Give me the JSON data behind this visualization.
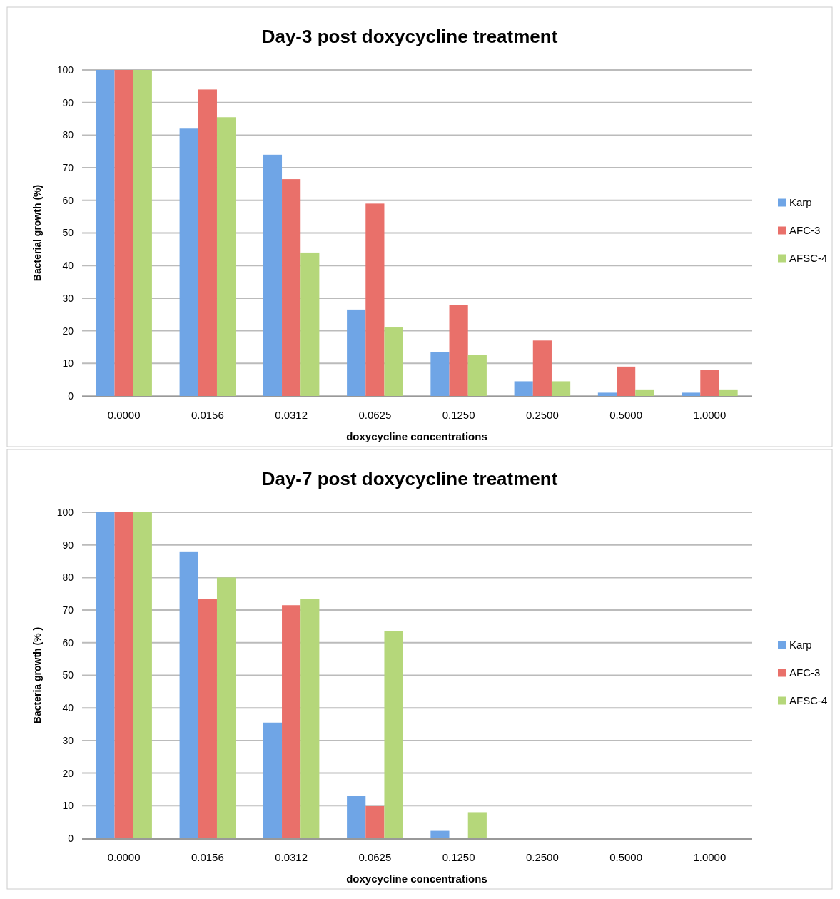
{
  "chart_data": [
    {
      "type": "bar",
      "title": "Day-3 post doxycycline treatment",
      "xlabel": "doxycycline concentrations",
      "ylabel": "Bacterial growth (%)",
      "categories": [
        "0.0000",
        "0.0156",
        "0.0312",
        "0.0625",
        "0.1250",
        "0.2500",
        "0.5000",
        "1.0000"
      ],
      "series": [
        {
          "name": "Karp",
          "color": "#6fa5e6",
          "values": [
            100,
            82,
            74,
            26.5,
            13.5,
            4.5,
            1,
            1
          ]
        },
        {
          "name": "AFC-3",
          "color": "#e9706a",
          "values": [
            100,
            94,
            66.5,
            59,
            28,
            17,
            9,
            8
          ]
        },
        {
          "name": "AFSC-4",
          "color": "#b5d77a",
          "values": [
            100,
            85.5,
            44,
            21,
            12.5,
            4.5,
            2,
            2
          ]
        }
      ],
      "ylim": [
        0,
        100
      ],
      "yticks": [
        0,
        10,
        20,
        30,
        40,
        50,
        60,
        70,
        80,
        90,
        100
      ],
      "grid": "y",
      "legend": "right"
    },
    {
      "type": "bar",
      "title": "Day-7 post doxycycline treatment",
      "xlabel": "doxycycline concentrations",
      "ylabel": "Bacteria growth (% )",
      "categories": [
        "0.0000",
        "0.0156",
        "0.0312",
        "0.0625",
        "0.1250",
        "0.2500",
        "0.5000",
        "1.0000"
      ],
      "series": [
        {
          "name": "Karp",
          "color": "#6fa5e6",
          "values": [
            100,
            88,
            35.5,
            13,
            2.5,
            0.2,
            0.2,
            0.2
          ]
        },
        {
          "name": "AFC-3",
          "color": "#e9706a",
          "values": [
            100,
            73.5,
            71.5,
            10,
            0.2,
            0.2,
            0.2,
            0.2
          ]
        },
        {
          "name": "AFSC-4",
          "color": "#b5d77a",
          "values": [
            100,
            80,
            73.5,
            63.5,
            8,
            0.2,
            0.2,
            0.2
          ]
        }
      ],
      "ylim": [
        0,
        100
      ],
      "yticks": [
        0,
        10,
        20,
        30,
        40,
        50,
        60,
        70,
        80,
        90,
        100
      ],
      "grid": "y",
      "legend": "right"
    }
  ]
}
